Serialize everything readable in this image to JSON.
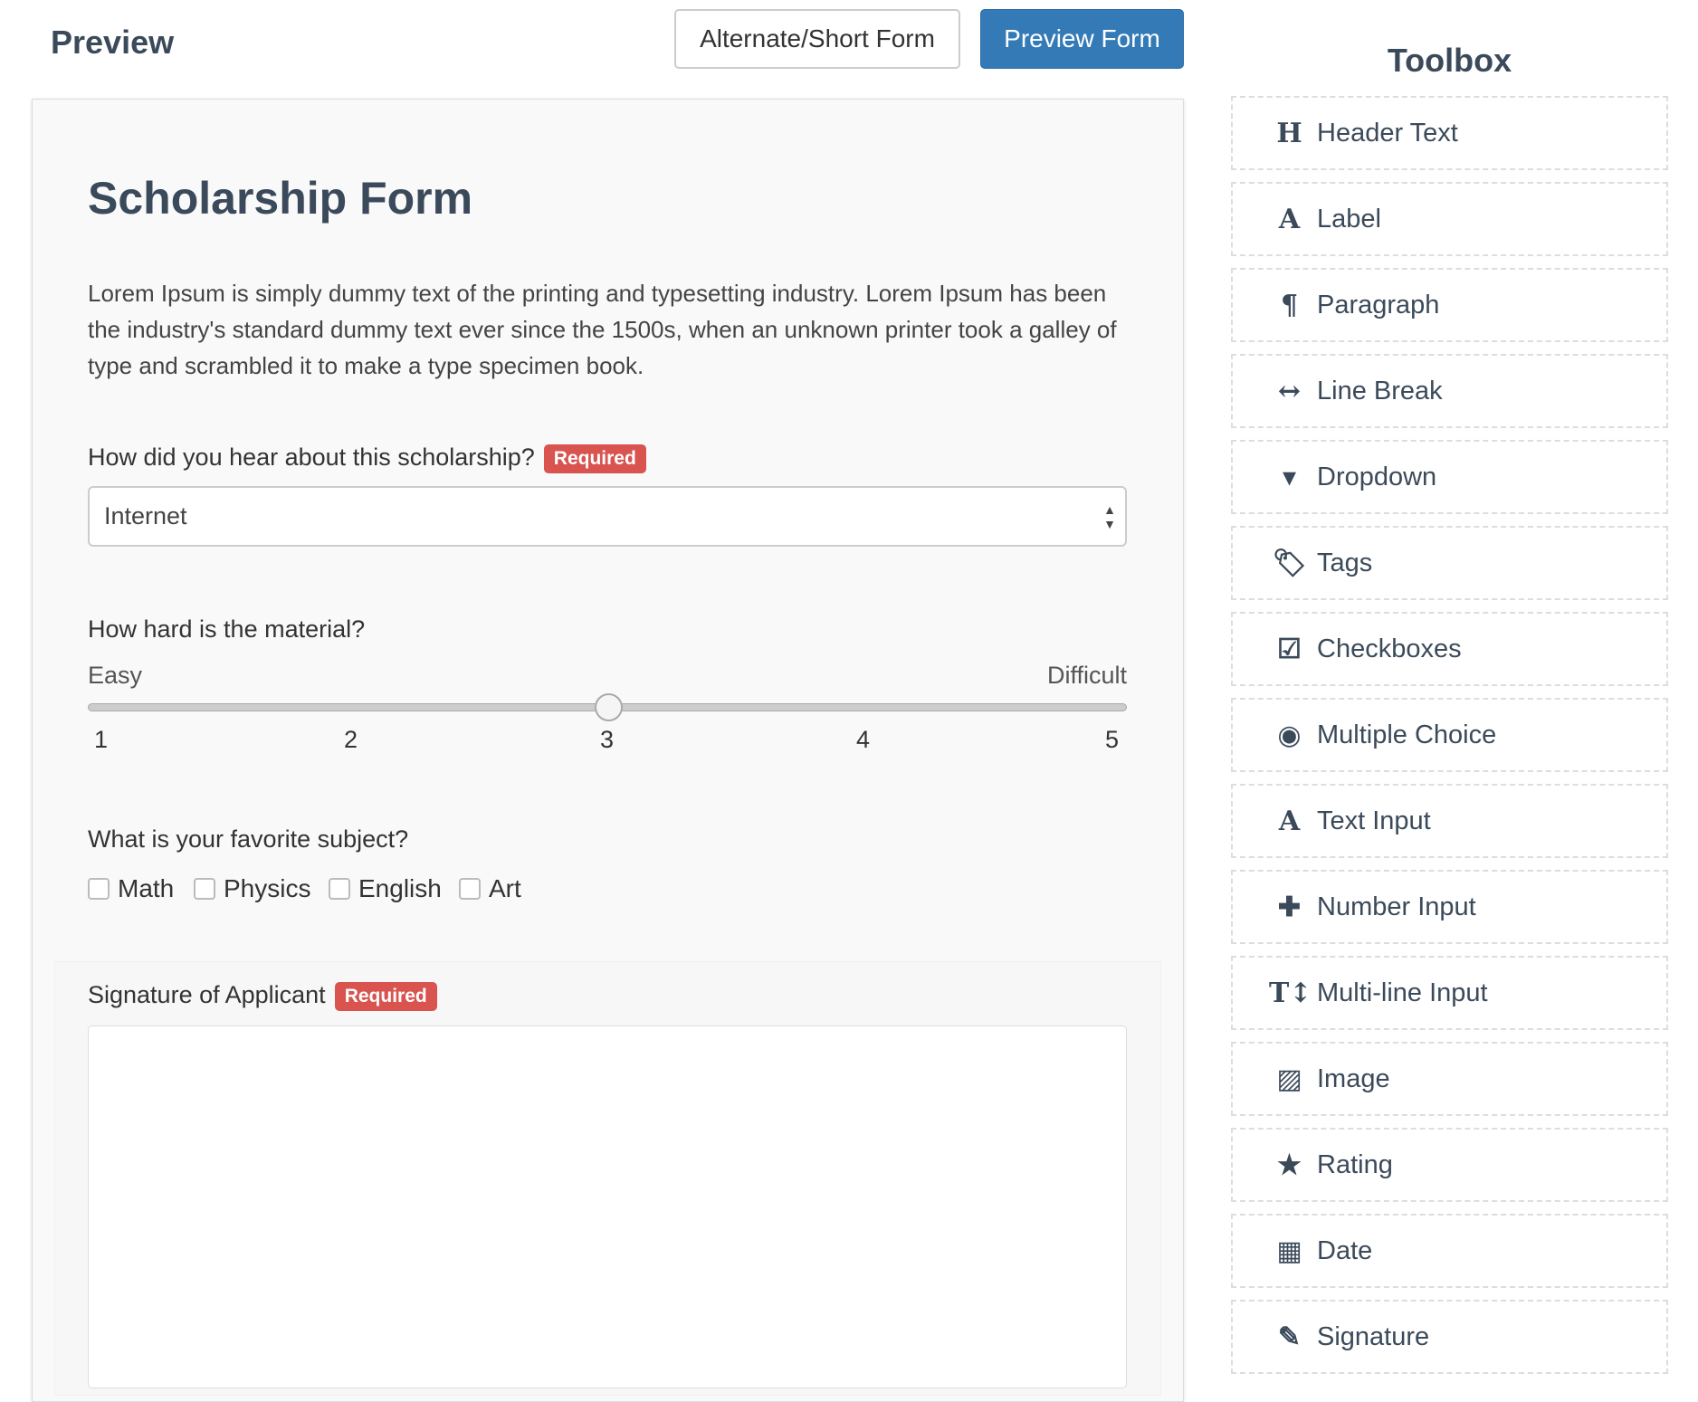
{
  "header": {
    "title": "Preview",
    "alt_button": "Alternate/Short Form",
    "preview_button": "Preview Form",
    "accent": "#337ab7"
  },
  "form": {
    "title": "Scholarship Form",
    "description": "Lorem Ipsum is simply dummy text of the printing and typesetting industry. Lorem Ipsum has been the industry's standard dummy text ever since the 1500s, when an unknown printer took a galley of type and scrambled it to make a type specimen book.",
    "required_label": "Required",
    "q1": {
      "label": "How did you hear about this scholarship?",
      "value": "Internet"
    },
    "q2": {
      "label": "How hard is the material?",
      "min_label": "Easy",
      "max_label": "Difficult",
      "ticks": [
        "1",
        "2",
        "3",
        "4",
        "5"
      ],
      "value": 3
    },
    "q3": {
      "label": "What is your favorite subject?",
      "options": [
        "Math",
        "Physics",
        "English",
        "Art"
      ]
    },
    "q4": {
      "label": "Signature of Applicant"
    }
  },
  "toolbox": {
    "title": "Toolbox",
    "items": [
      {
        "label": "Header Text",
        "icon": "header-icon",
        "glyph": "H"
      },
      {
        "label": "Label",
        "icon": "font-icon",
        "glyph": "A"
      },
      {
        "label": "Paragraph",
        "icon": "paragraph-icon",
        "glyph": "¶"
      },
      {
        "label": "Line Break",
        "icon": "arrows-h-icon",
        "glyph": "↔"
      },
      {
        "label": "Dropdown",
        "icon": "caret-square-down-icon",
        "glyph": "▾"
      },
      {
        "label": "Tags",
        "icon": "tags-icon",
        "glyph": "🏷"
      },
      {
        "label": "Checkboxes",
        "icon": "check-square-icon",
        "glyph": "☑"
      },
      {
        "label": "Multiple Choice",
        "icon": "dot-circle-icon",
        "glyph": "◉"
      },
      {
        "label": "Text Input",
        "icon": "font-icon",
        "glyph": "A"
      },
      {
        "label": "Number Input",
        "icon": "plus-icon",
        "glyph": "✚"
      },
      {
        "label": "Multi-line Input",
        "icon": "text-height-icon",
        "glyph": "T↕"
      },
      {
        "label": "Image",
        "icon": "image-icon",
        "glyph": "▨"
      },
      {
        "label": "Rating",
        "icon": "star-icon",
        "glyph": "★"
      },
      {
        "label": "Date",
        "icon": "calendar-icon",
        "glyph": "▦"
      },
      {
        "label": "Signature",
        "icon": "edit-icon",
        "glyph": "✎"
      }
    ]
  }
}
